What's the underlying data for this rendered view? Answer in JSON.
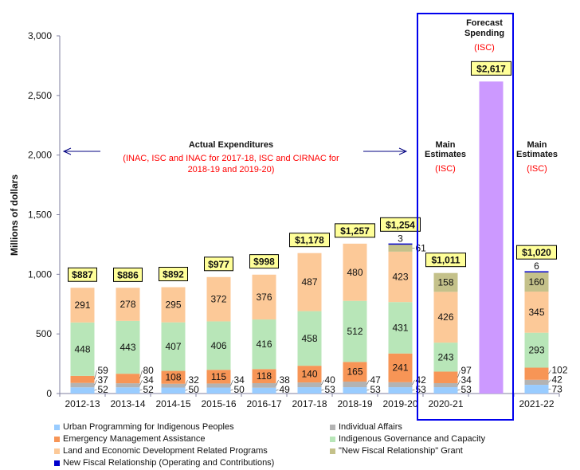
{
  "chart_data": {
    "type": "bar",
    "stacked": true,
    "title": "",
    "ylabel": "Millions of dollars",
    "xlabel": "",
    "ylim": [
      0,
      3000
    ],
    "yticks": [
      0,
      500,
      1000,
      1500,
      2000,
      2500,
      3000
    ],
    "ytick_labels": [
      "0",
      "500",
      "1,000",
      "1,500",
      "2,000",
      "2,500",
      "3,000"
    ],
    "grid": false,
    "categories": [
      "2012-13",
      "2013-14",
      "2014-15",
      "2015-16",
      "2016-17",
      "2017-18",
      "2018-19",
      "2019-20",
      "2020-21",
      "",
      "2021-22"
    ],
    "series": [
      {
        "name": "Urban Programming for Indigenous Peoples",
        "color": "#99ccff",
        "values": [
          52,
          52,
          50,
          50,
          49,
          53,
          53,
          53,
          53,
          null,
          73
        ]
      },
      {
        "name": "Individual Affairs",
        "color": "#b3b3b3",
        "values": [
          37,
          34,
          32,
          34,
          38,
          40,
          47,
          42,
          34,
          null,
          42
        ]
      },
      {
        "name": "Emergency Management Assistance",
        "color": "#f79556",
        "values": [
          59,
          80,
          108,
          115,
          118,
          140,
          165,
          241,
          97,
          null,
          102
        ]
      },
      {
        "name": "Indigenous Governance and Capacity",
        "color": "#b8e6b8",
        "values": [
          448,
          443,
          407,
          406,
          416,
          458,
          512,
          431,
          243,
          null,
          293
        ]
      },
      {
        "name": "Land and Economic Development Related Programs",
        "color": "#fcc998",
        "values": [
          291,
          278,
          295,
          372,
          376,
          487,
          480,
          423,
          426,
          null,
          345
        ]
      },
      {
        "name": "\"New Fiscal Relationship\" Grant",
        "color": "#c4c18a",
        "values": [
          null,
          null,
          null,
          null,
          null,
          null,
          null,
          61,
          158,
          null,
          160
        ]
      },
      {
        "name": "New Fiscal Relationship (Operating and Contributions)",
        "color": "#0000cc",
        "values": [
          null,
          null,
          null,
          null,
          null,
          null,
          null,
          3,
          null,
          null,
          6
        ]
      },
      {
        "name": "Forecast Spending",
        "color": "#cc99ff",
        "values": [
          null,
          null,
          null,
          null,
          null,
          null,
          null,
          null,
          null,
          2617,
          null
        ],
        "in_legend": false
      }
    ],
    "totals": [
      887,
      886,
      892,
      977,
      998,
      1178,
      1257,
      1254,
      1011,
      2617,
      1020
    ],
    "total_labels": [
      "$887",
      "$886",
      "$892",
      "$977",
      "$998",
      "$1,178",
      "$1,257",
      "$1,254",
      "$1,011",
      "$2,617",
      "$1,020"
    ],
    "annotations": {
      "actual_title": "Actual Expenditures",
      "actual_sub_1": "(INAC, ISC and INAC for 2017-18, ISC and CIRNAC for",
      "actual_sub_2": "2018-19 and 2019-20)",
      "main_est_title_1": "Main",
      "main_est_title_2": "Estimates",
      "main_est_sub": "(ISC)",
      "forecast_title_1": "Forecast",
      "forecast_title_2": "Spending",
      "forecast_sub": "(ISC)",
      "main_est_2_title_1": "Main",
      "main_est_2_title_2": "Estimates",
      "main_est_2_sub": "(ISC)"
    },
    "legend_placement": "bottom",
    "colors": {
      "axis": "#7f7f9f",
      "box": "#0000ee",
      "annotation_red": "#ff0000",
      "label_box_fill": "#ffff99",
      "arrow": "#000080"
    }
  }
}
